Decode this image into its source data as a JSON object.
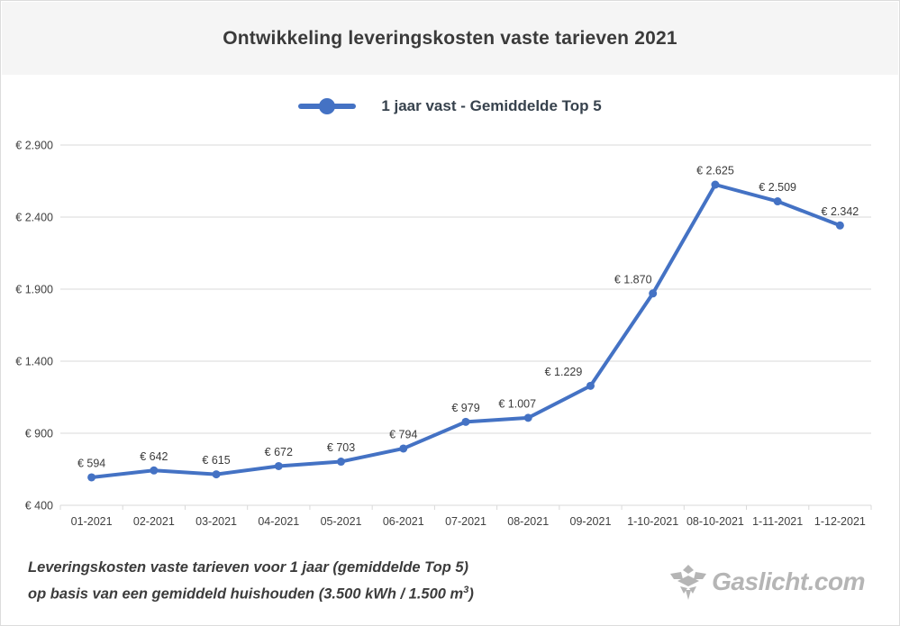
{
  "page": {
    "title": "Ontwikkeling leveringskosten vaste tarieven 2021",
    "footer": {
      "line1": "Leveringskosten vaste tarieven voor 1 jaar (gemiddelde Top 5)",
      "line2_prefix": "op basis van een gemiddeld huishouden (3.500 kWh / 1.500 m",
      "line2_sup": "3",
      "line2_suffix": ")"
    },
    "logo": {
      "text": "Gaslicht.com",
      "icon": "gas-flame-icon"
    }
  },
  "legend": {
    "label": "1 jaar vast - Gemiddelde Top 5"
  },
  "colors": {
    "line": "#4472c4",
    "grid": "#d9d9d9",
    "axis_text": "#404040",
    "data_label_text": "#3b3b3b",
    "title_text": "#3a3a3a",
    "legend_text": "#37424d",
    "header_bg": "#f5f5f5",
    "logo_gray": "#b5b5b5"
  },
  "chart_data": {
    "type": "line",
    "title": "Ontwikkeling leveringskosten vaste tarieven 2021",
    "categories": [
      "01-2021",
      "02-2021",
      "03-2021",
      "04-2021",
      "05-2021",
      "06-2021",
      "07-2021",
      "08-2021",
      "09-2021",
      "1-10-2021",
      "08-10-2021",
      "1-11-2021",
      "1-12-2021"
    ],
    "series": [
      {
        "name": "1 jaar vast - Gemiddelde Top 5",
        "values": [
          594,
          642,
          615,
          672,
          703,
          794,
          979,
          1007,
          1229,
          1870,
          2625,
          2509,
          2342
        ],
        "data_labels": [
          "€ 594",
          "€ 642",
          "€ 615",
          "€ 672",
          "€ 703",
          "€ 794",
          "€ 979",
          "€ 1.007",
          "€ 1.229",
          "€ 1.870",
          "€ 2.625",
          "€ 2.509",
          "€ 2.342"
        ]
      }
    ],
    "xlabel": "",
    "ylabel": "",
    "ylim": [
      400,
      2900
    ],
    "y_ticks": [
      {
        "value": 2900,
        "label": "€ 2.900"
      },
      {
        "value": 2400,
        "label": "€ 2.400"
      },
      {
        "value": 1900,
        "label": "€ 1.900"
      },
      {
        "value": 1400,
        "label": "€ 1.400"
      },
      {
        "value": 900,
        "label": "€ 900"
      },
      {
        "value": 400,
        "label": "€ 400"
      }
    ],
    "grid": "horizontal",
    "legend_position": "top-center",
    "label_dx": [
      0,
      0,
      0,
      0,
      0,
      0,
      0,
      -12,
      -30,
      -22,
      0,
      0,
      0
    ]
  }
}
